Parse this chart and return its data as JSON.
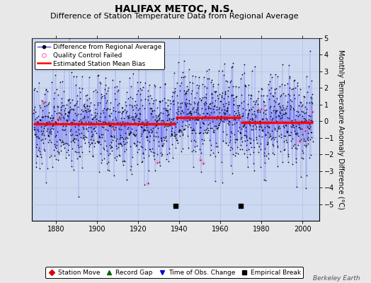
{
  "title": "HALIFAX METOC, N.S.",
  "subtitle": "Difference of Station Temperature Data from Regional Average",
  "ylabel": "Monthly Temperature Anomaly Difference (°C)",
  "xlabel_ticks": [
    1880,
    1900,
    1920,
    1940,
    1960,
    1980,
    2000
  ],
  "ylim": [
    -6,
    5
  ],
  "yticks": [
    -5,
    -4,
    -3,
    -2,
    -1,
    0,
    1,
    2,
    3,
    4,
    5
  ],
  "xlim": [
    1868,
    2008
  ],
  "year_start": 1869,
  "year_end": 2005,
  "seed": 42,
  "n_months_per_year": 12,
  "noise_std": 1.35,
  "bias_segments": [
    {
      "x_start": 1869,
      "x_end": 1938,
      "bias": -0.18
    },
    {
      "x_start": 1938,
      "x_end": 1970,
      "bias": 0.22
    },
    {
      "x_start": 1970,
      "x_end": 2005,
      "bias": -0.08
    }
  ],
  "empirical_breaks": [
    1938,
    1970
  ],
  "background_color": "#e8e8e8",
  "plot_bg_color": "#ccd9f0",
  "line_color": "#4444ff",
  "dot_color": "#000000",
  "dot_size": 1.5,
  "bias_color": "#ff0000",
  "bias_linewidth": 2.5,
  "qc_color": "#ff88bb",
  "break_color": "#000000",
  "grid_color": "#aaaacc",
  "title_fontsize": 10,
  "subtitle_fontsize": 8,
  "tick_fontsize": 7,
  "ylabel_fontsize": 7,
  "legend_fontsize": 6.5,
  "berkeley_earth_text": "Berkeley Earth"
}
